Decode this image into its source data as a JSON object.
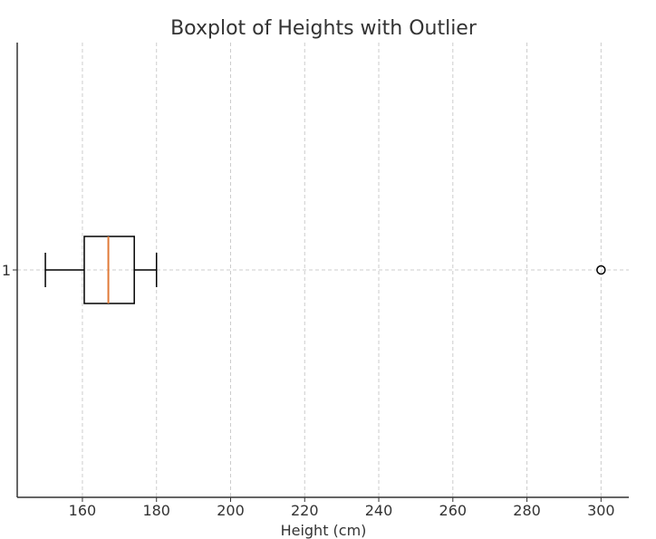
{
  "chart_data": {
    "type": "boxplot",
    "orientation": "horizontal",
    "title": "Boxplot of Heights with Outlier",
    "xlabel": "Height (cm)",
    "ylabel": "",
    "xlim": [
      142.4,
      307.5
    ],
    "xticks": [
      160,
      180,
      200,
      220,
      240,
      260,
      280,
      300
    ],
    "yticks": [
      "1"
    ],
    "grid": true,
    "series": [
      {
        "name": "1",
        "whisker_low": 150,
        "q1": 160.5,
        "median": 167,
        "q3": 174,
        "whisker_high": 180,
        "outliers": [
          300
        ]
      }
    ],
    "colors": {
      "box": "#000000",
      "median": "#e07b39",
      "grid": "#cccccc"
    }
  }
}
